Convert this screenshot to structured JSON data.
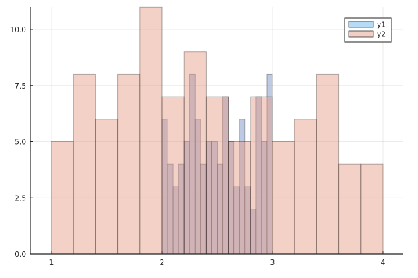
{
  "chart_data": {
    "type": "bar",
    "subtype": "histogram-overlay",
    "title": "",
    "xlabel": "",
    "ylabel": "",
    "xlim": [
      0.82,
      4.18
    ],
    "ylim": [
      0,
      11
    ],
    "grid": true,
    "legend_position": "top-right",
    "x_ticks": [
      {
        "value": 1,
        "label": "1"
      },
      {
        "value": 2,
        "label": "2"
      },
      {
        "value": 3,
        "label": "3"
      },
      {
        "value": 4,
        "label": "4"
      }
    ],
    "y_ticks": [
      {
        "value": 0,
        "label": "0.0"
      },
      {
        "value": 2.5,
        "label": "2.5"
      },
      {
        "value": 5,
        "label": "5.0"
      },
      {
        "value": 7.5,
        "label": "7.5"
      },
      {
        "value": 10,
        "label": "10.0"
      }
    ],
    "series": [
      {
        "name": "y1",
        "color": "#b6dbf7",
        "bin_edges": [
          2.0,
          2.05,
          2.1,
          2.15,
          2.2,
          2.25,
          2.3,
          2.35,
          2.4,
          2.45,
          2.5,
          2.55,
          2.6,
          2.65,
          2.7,
          2.75,
          2.8,
          2.85,
          2.9,
          2.95,
          3.0
        ],
        "values": [
          6,
          4,
          3,
          4,
          5,
          8,
          6,
          4,
          5,
          5,
          4,
          7,
          5,
          3,
          6,
          3,
          2,
          7,
          5,
          8
        ]
      },
      {
        "name": "y2",
        "color": "#f2cfc4",
        "bin_edges": [
          1.0,
          1.2,
          1.4,
          1.6,
          1.8,
          2.0,
          2.2,
          2.4,
          2.6,
          2.8,
          3.0,
          3.2,
          3.4,
          3.6,
          3.8,
          4.0
        ],
        "values": [
          5,
          8,
          6,
          8,
          11,
          7,
          9,
          7,
          5,
          7,
          5,
          6,
          8,
          4,
          4
        ]
      }
    ]
  },
  "legend": {
    "items": [
      {
        "label": "y1",
        "color": "#b6dbf7"
      },
      {
        "label": "y2",
        "color": "#f2cfc4"
      }
    ]
  }
}
